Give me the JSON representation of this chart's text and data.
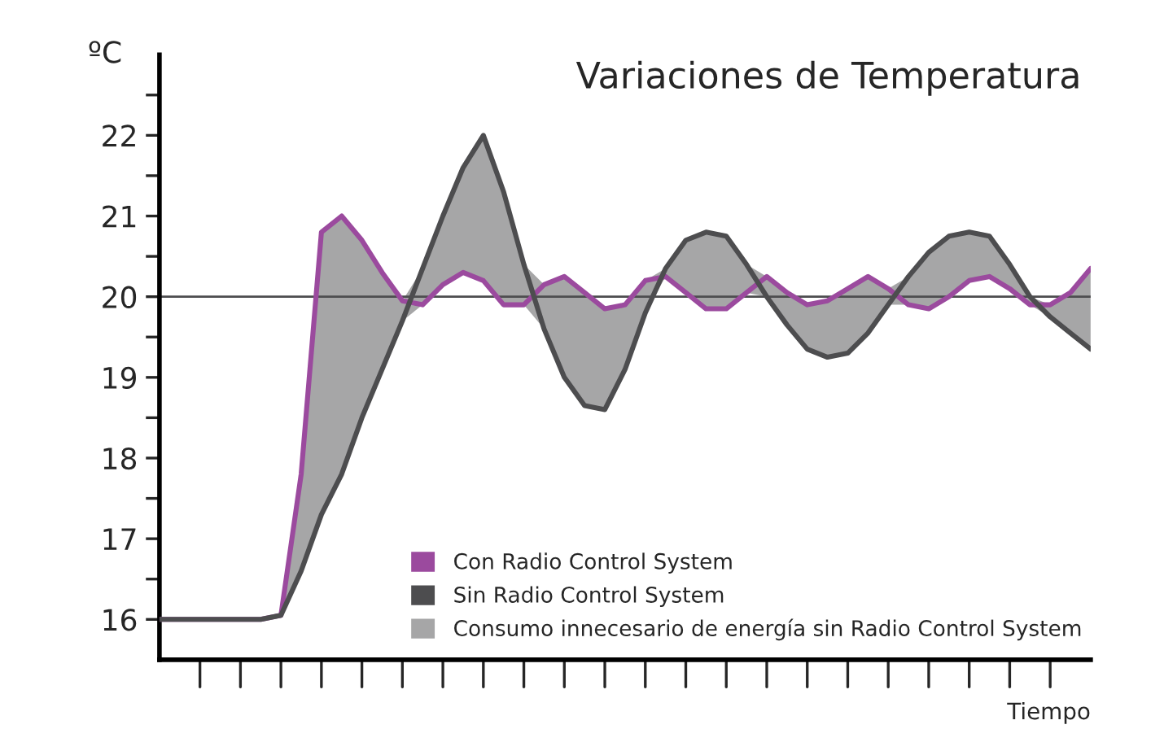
{
  "chart_data": {
    "type": "line",
    "title": "Variaciones de Temperatura",
    "ylabel": "ºC",
    "xlabel": "Tiempo",
    "categories": [
      null,
      null,
      null,
      null,
      null,
      null,
      null,
      null,
      null,
      null,
      null,
      null,
      null,
      null,
      null,
      null,
      null,
      null,
      null,
      null,
      null,
      null,
      null,
      null,
      null,
      null,
      null,
      null,
      null,
      null,
      null,
      null,
      null,
      null,
      null,
      null,
      null,
      null,
      null,
      null,
      null,
      null,
      null,
      null,
      null,
      null,
      null
    ],
    "series": [
      {
        "name": "Con Radio Control System",
        "color": "#9b4a9e",
        "values": [
          16,
          16,
          16,
          16,
          16,
          16,
          16.05,
          17.8,
          20.8,
          21.0,
          20.7,
          20.3,
          19.95,
          19.9,
          20.15,
          20.3,
          20.2,
          19.9,
          19.9,
          20.15,
          20.25,
          20.05,
          19.85,
          19.9,
          20.2,
          20.25,
          20.05,
          19.85,
          19.85,
          20.05,
          20.25,
          20.05,
          19.9,
          19.95,
          20.1,
          20.25,
          20.1,
          19.9,
          19.85,
          20.0,
          20.2,
          20.25,
          20.1,
          19.9,
          19.9,
          20.05,
          20.35
        ]
      },
      {
        "name": "Sin Radio Control System",
        "color": "#4d4d4f",
        "values": [
          16,
          16,
          16,
          16,
          16,
          16,
          16.05,
          16.6,
          17.3,
          17.8,
          18.5,
          19.1,
          19.7,
          20.35,
          21.0,
          21.6,
          22.0,
          21.3,
          20.4,
          19.6,
          19.0,
          18.65,
          18.6,
          19.1,
          19.8,
          20.35,
          20.7,
          20.8,
          20.75,
          20.4,
          20.0,
          19.65,
          19.35,
          19.25,
          19.3,
          19.55,
          19.9,
          20.25,
          20.55,
          20.75,
          20.8,
          20.75,
          20.4,
          20.0,
          19.75,
          19.55,
          19.35
        ],
        "lower": [
          16,
          16,
          16,
          16,
          16,
          16,
          16.05,
          16.6,
          17.3,
          17.8,
          18.5,
          19.1,
          19.7,
          19.9,
          20.15,
          20.3,
          20.2,
          19.9,
          19.9,
          19.6,
          19.0,
          18.65,
          18.6,
          19.1,
          19.8,
          20.25,
          20.05,
          19.85,
          19.85,
          20.05,
          20.0,
          19.65,
          19.35,
          19.25,
          19.3,
          19.55,
          19.9,
          19.9,
          19.85,
          20.0,
          20.2,
          20.25,
          20.1,
          19.9,
          19.75,
          19.55,
          19.35
        ],
        "upper": [
          16,
          16,
          16,
          16,
          16,
          16,
          16.05,
          17.8,
          20.8,
          21.0,
          20.7,
          20.3,
          19.95,
          20.35,
          21.0,
          21.6,
          22.0,
          21.3,
          20.4,
          20.15,
          20.25,
          20.05,
          19.85,
          19.9,
          20.2,
          20.35,
          20.7,
          20.8,
          20.75,
          20.4,
          20.25,
          20.05,
          19.9,
          19.95,
          20.1,
          20.25,
          20.1,
          20.25,
          20.55,
          20.75,
          20.8,
          20.75,
          20.4,
          20.0,
          19.9,
          20.05,
          20.35
        ]
      }
    ],
    "annotations": [
      "Consumo innecesario de energía sin Radio Control System"
    ],
    "ylim": [
      15.5,
      23
    ],
    "yticks": [
      16,
      {
        "value": 16.5,
        "label": null
      },
      17,
      {
        "value": 17.5,
        "label": null
      },
      18,
      {
        "value": 18.5,
        "label": null
      },
      19,
      {
        "value": 19.5,
        "label": null
      },
      20,
      {
        "value": 20.5,
        "label": null
      },
      21,
      {
        "value": 21.5,
        "label": null
      },
      22,
      {
        "value": 22.5,
        "label": null
      }
    ],
    "ref_lines": [
      {
        "axis": "y",
        "value": 20,
        "color": "#4d4d4f"
      }
    ],
    "tick_labels": "y",
    "legend": "bottom",
    "grid": false
  }
}
